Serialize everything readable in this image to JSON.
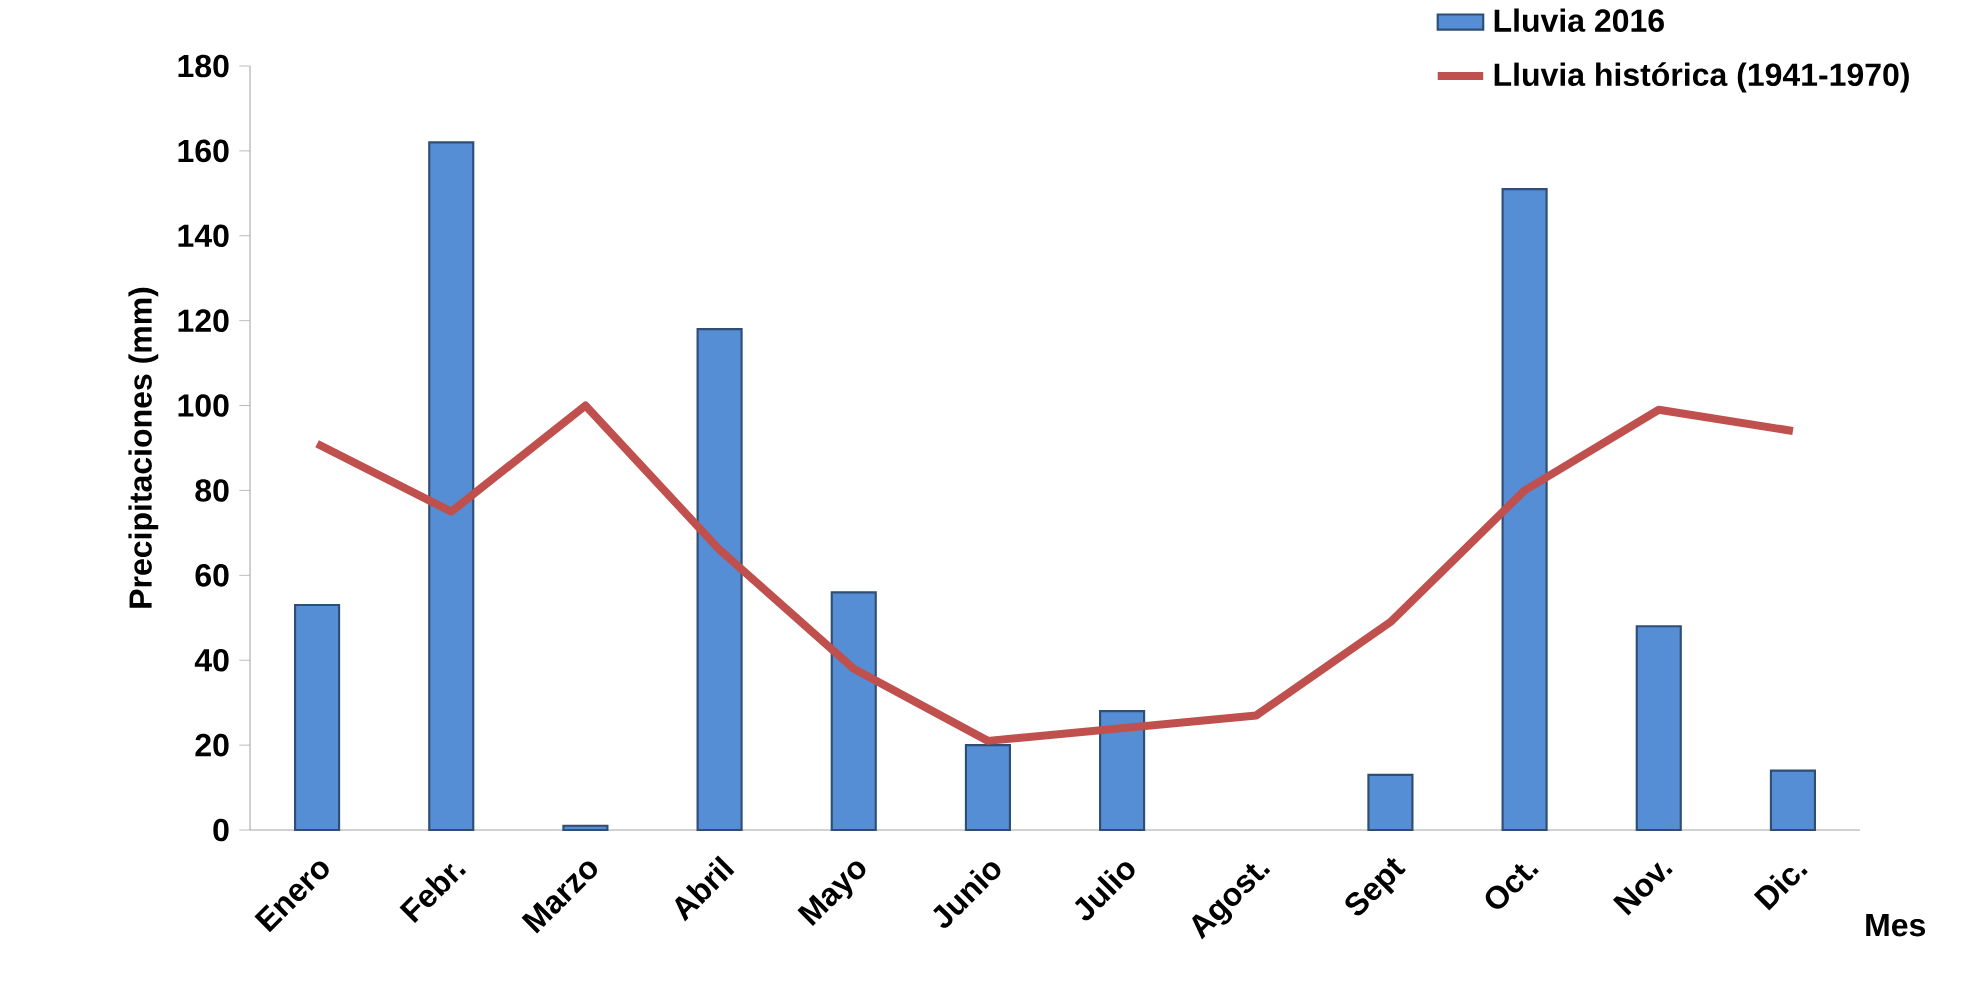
{
  "chart_data": {
    "type": "bar",
    "ylabel": "Precipitaciones (mm)",
    "xlabel": "Mes",
    "categories": [
      "Enero",
      "Febr.",
      "Marzo",
      "Abril",
      "Mayo",
      "Junio",
      "Julio",
      "Agost.",
      "Sept",
      "Oct.",
      "Nov.",
      "Dic."
    ],
    "series": [
      {
        "name": "Lluvia 2016",
        "color": "#558ed5",
        "values": [
          53,
          162,
          1,
          118,
          56,
          20,
          28,
          0,
          13,
          151,
          48,
          14
        ]
      },
      {
        "name": "Lluvia histórica (1941-1970)",
        "type": "line",
        "color": "#c0504d",
        "values": [
          91,
          75,
          100,
          66,
          38,
          21,
          24,
          27,
          49,
          80,
          99,
          94
        ]
      }
    ],
    "ylim": [
      0,
      180
    ],
    "yticks": [
      0,
      20,
      40,
      60,
      80,
      100,
      120,
      140,
      160,
      180
    ],
    "legend": "top right"
  }
}
